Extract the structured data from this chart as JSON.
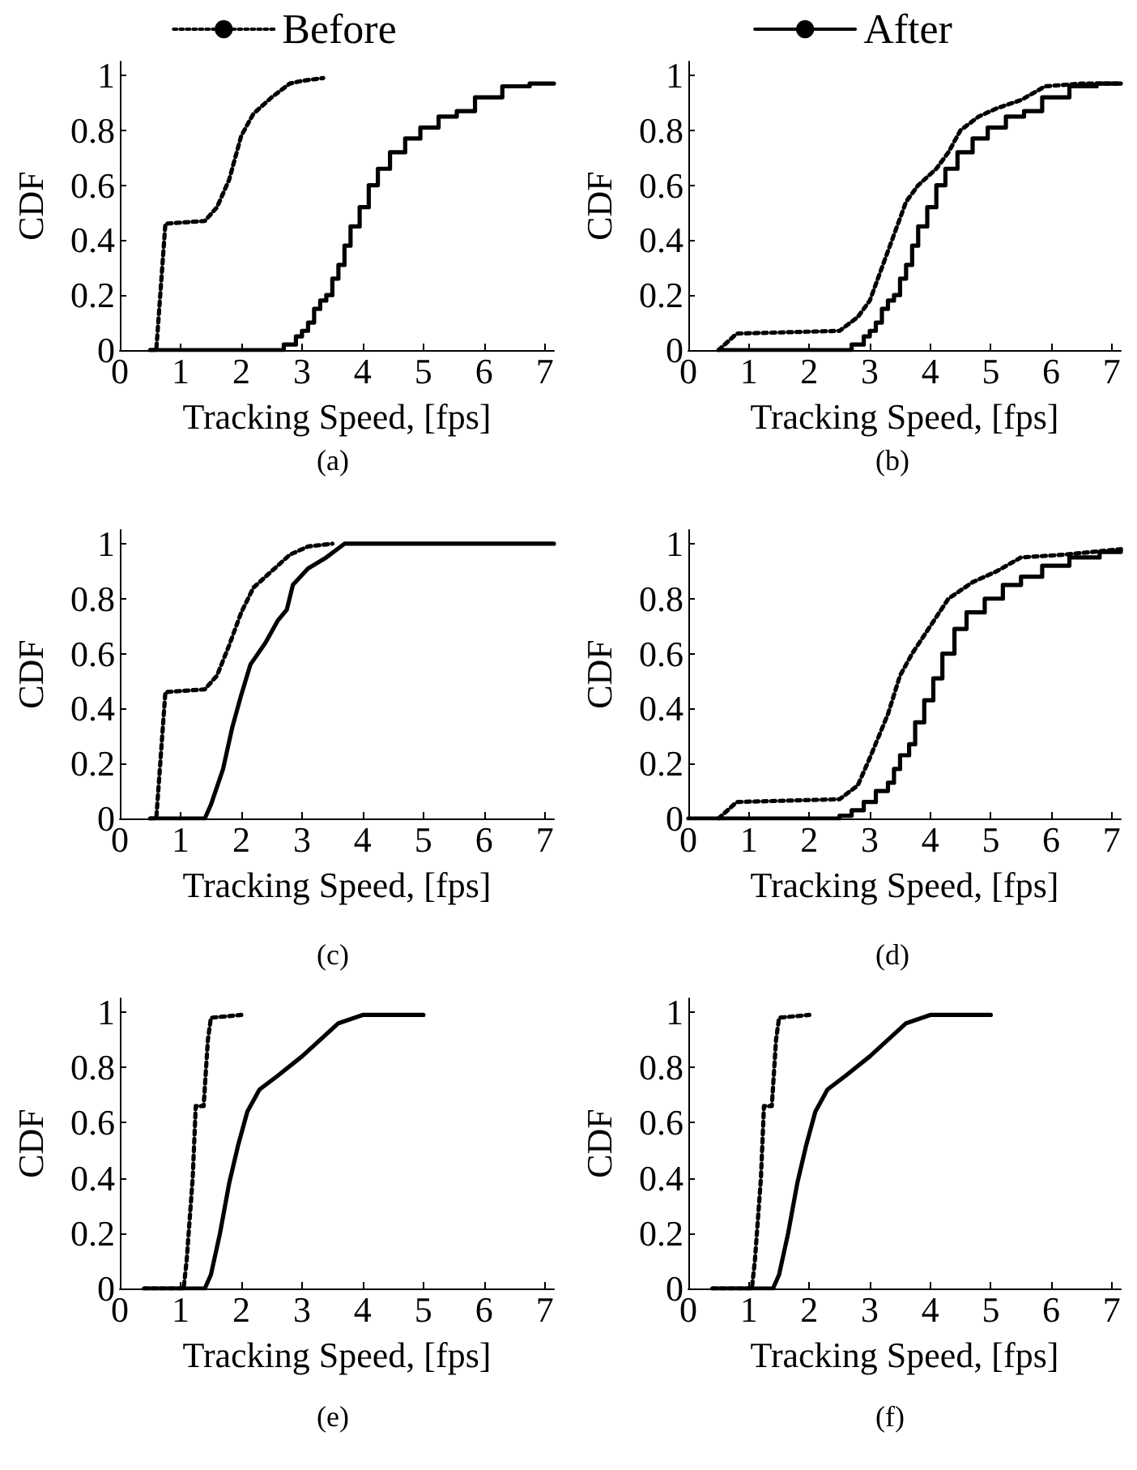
{
  "chart_data": [
    {
      "type": "line",
      "xlabel": "Tracking Speed, [fps]",
      "ylabel": "CDF",
      "annotations": [
        "(a)"
      ],
      "xlim": [
        0,
        7.15
      ],
      "ylim": [
        0,
        1.05
      ],
      "xticks": [
        0,
        1,
        2,
        3,
        4,
        5,
        6,
        7
      ],
      "yticks": [
        0,
        0.2,
        0.4,
        0.6,
        0.8,
        1
      ],
      "grid": false,
      "legend": "top",
      "marker": "none",
      "series": [
        {
          "name": "Before",
          "color": "#000000",
          "line_style": "dotted",
          "x": [
            0.5,
            0.6,
            0.75,
            1.4,
            1.6,
            1.8,
            2.0,
            2.2,
            2.5,
            2.8,
            3.0,
            3.35
          ],
          "values": [
            0,
            0,
            0.46,
            0.47,
            0.52,
            0.62,
            0.78,
            0.86,
            0.92,
            0.97,
            0.98,
            0.99
          ]
        },
        {
          "type": "step",
          "color": "#000000",
          "line_style": "solid",
          "x": [
            0.5,
            2.5,
            2.7,
            2.9,
            3.0,
            3.1,
            3.2,
            3.3,
            3.4,
            3.5,
            3.6,
            3.7,
            3.8,
            3.95,
            4.1,
            4.25,
            4.45,
            4.7,
            4.95,
            5.25,
            5.55,
            5.85,
            6.3,
            6.75,
            7.15
          ],
          "values": [
            0,
            0,
            0.02,
            0.05,
            0.07,
            0.1,
            0.15,
            0.18,
            0.2,
            0.26,
            0.31,
            0.38,
            0.45,
            0.52,
            0.6,
            0.66,
            0.72,
            0.77,
            0.81,
            0.85,
            0.87,
            0.92,
            0.96,
            0.97,
            0.97
          ]
        }
      ]
    },
    {
      "type": "line",
      "xlabel": "Tracking Speed, [fps]",
      "ylabel": "CDF",
      "annotations": [
        "(b)"
      ],
      "xlim": [
        0,
        7.15
      ],
      "ylim": [
        0,
        1.05
      ],
      "xticks": [
        0,
        1,
        2,
        3,
        4,
        5,
        6,
        7
      ],
      "yticks": [
        0,
        0.2,
        0.4,
        0.6,
        0.8,
        1
      ],
      "grid": false,
      "legend": "top",
      "marker": "none",
      "series": [
        {
          "color": "#000000",
          "line_style": "dotted",
          "x": [
            0.5,
            0.8,
            2.5,
            2.8,
            3.0,
            3.2,
            3.4,
            3.6,
            3.8,
            4.1,
            4.3,
            4.5,
            4.8,
            5.1,
            5.5,
            5.9,
            6.5,
            7.15
          ],
          "values": [
            0,
            0.06,
            0.07,
            0.12,
            0.18,
            0.3,
            0.42,
            0.54,
            0.6,
            0.66,
            0.72,
            0.8,
            0.85,
            0.88,
            0.91,
            0.96,
            0.97,
            0.97
          ]
        },
        {
          "name": "After",
          "type": "step",
          "color": "#000000",
          "line_style": "solid",
          "x": [
            0.5,
            2.5,
            2.7,
            2.9,
            3.0,
            3.1,
            3.2,
            3.3,
            3.4,
            3.5,
            3.6,
            3.7,
            3.8,
            3.95,
            4.1,
            4.25,
            4.45,
            4.7,
            4.95,
            5.25,
            5.55,
            5.85,
            6.3,
            6.75,
            7.15
          ],
          "values": [
            0,
            0,
            0.02,
            0.05,
            0.07,
            0.1,
            0.15,
            0.18,
            0.2,
            0.26,
            0.31,
            0.38,
            0.45,
            0.52,
            0.6,
            0.66,
            0.72,
            0.77,
            0.81,
            0.85,
            0.87,
            0.92,
            0.96,
            0.97,
            0.97
          ]
        }
      ]
    },
    {
      "type": "line",
      "xlabel": "Tracking Speed, [fps]",
      "ylabel": "CDF",
      "annotations": [
        "(c)"
      ],
      "xlim": [
        0,
        7.15
      ],
      "ylim": [
        0,
        1.05
      ],
      "xticks": [
        0,
        1,
        2,
        3,
        4,
        5,
        6,
        7
      ],
      "yticks": [
        0,
        0.2,
        0.4,
        0.6,
        0.8,
        1
      ],
      "grid": false,
      "marker": "none",
      "series": [
        {
          "color": "#000000",
          "line_style": "dotted",
          "x": [
            0.5,
            0.6,
            0.75,
            1.4,
            1.6,
            1.8,
            2.0,
            2.2,
            2.5,
            2.8,
            3.1,
            3.5
          ],
          "values": [
            0,
            0,
            0.46,
            0.47,
            0.52,
            0.63,
            0.75,
            0.84,
            0.9,
            0.96,
            0.99,
            1.0
          ]
        },
        {
          "color": "#000000",
          "line_style": "solid",
          "x": [
            0.5,
            1.4,
            1.5,
            1.7,
            1.85,
            2.0,
            2.15,
            2.4,
            2.6,
            2.75,
            2.85,
            3.1,
            3.4,
            3.7,
            7.15
          ],
          "values": [
            0,
            0,
            0.05,
            0.18,
            0.33,
            0.45,
            0.56,
            0.64,
            0.72,
            0.76,
            0.85,
            0.91,
            0.95,
            1.0,
            1.0
          ]
        }
      ]
    },
    {
      "type": "line",
      "xlabel": "Tracking Speed, [fps]",
      "ylabel": "CDF",
      "annotations": [
        "(d)"
      ],
      "xlim": [
        0,
        7.15
      ],
      "ylim": [
        0,
        1.05
      ],
      "xticks": [
        0,
        1,
        2,
        3,
        4,
        5,
        6,
        7
      ],
      "yticks": [
        0,
        0.2,
        0.4,
        0.6,
        0.8,
        1
      ],
      "grid": false,
      "marker": "none",
      "series": [
        {
          "color": "#000000",
          "line_style": "dotted",
          "x": [
            0.5,
            0.8,
            2.5,
            2.8,
            3.0,
            3.3,
            3.5,
            3.7,
            4.0,
            4.3,
            4.7,
            5.1,
            5.5,
            6.2,
            7.15
          ],
          "values": [
            0,
            0.06,
            0.07,
            0.12,
            0.22,
            0.38,
            0.52,
            0.6,
            0.7,
            0.8,
            0.86,
            0.9,
            0.95,
            0.96,
            0.98
          ]
        },
        {
          "type": "step",
          "color": "#000000",
          "line_style": "solid",
          "x": [
            0,
            2.5,
            2.7,
            2.9,
            3.1,
            3.3,
            3.4,
            3.5,
            3.65,
            3.75,
            3.9,
            4.05,
            4.2,
            4.4,
            4.6,
            4.9,
            5.2,
            5.5,
            5.85,
            6.3,
            6.8,
            7.15
          ],
          "values": [
            0,
            0.01,
            0.03,
            0.06,
            0.1,
            0.13,
            0.18,
            0.23,
            0.27,
            0.35,
            0.43,
            0.51,
            0.6,
            0.69,
            0.75,
            0.8,
            0.85,
            0.88,
            0.92,
            0.95,
            0.97,
            0.98
          ]
        }
      ]
    },
    {
      "type": "line",
      "xlabel": "Tracking Speed, [fps]",
      "ylabel": "CDF",
      "annotations": [
        "(e)"
      ],
      "xlim": [
        0,
        7.15
      ],
      "ylim": [
        0,
        1.05
      ],
      "xticks": [
        0,
        1,
        2,
        3,
        4,
        5,
        6,
        7
      ],
      "yticks": [
        0,
        0.2,
        0.4,
        0.6,
        0.8,
        1
      ],
      "grid": false,
      "marker": "none",
      "series": [
        {
          "color": "#000000",
          "line_style": "dotted",
          "x": [
            0.4,
            1.05,
            1.1,
            1.2,
            1.25,
            1.38,
            1.45,
            1.5,
            2.0
          ],
          "values": [
            0,
            0,
            0.1,
            0.4,
            0.66,
            0.66,
            0.9,
            0.98,
            0.99
          ]
        },
        {
          "color": "#000000",
          "line_style": "solid",
          "x": [
            0.4,
            1.4,
            1.5,
            1.65,
            1.8,
            1.95,
            2.1,
            2.3,
            2.6,
            3.0,
            3.3,
            3.6,
            4.0,
            5.0
          ],
          "values": [
            0,
            0,
            0.05,
            0.2,
            0.38,
            0.52,
            0.64,
            0.72,
            0.77,
            0.84,
            0.9,
            0.96,
            0.99,
            0.99
          ]
        }
      ]
    },
    {
      "type": "line",
      "xlabel": "Tracking Speed, [fps]",
      "ylabel": "CDF",
      "annotations": [
        "(f)"
      ],
      "xlim": [
        0,
        7.15
      ],
      "ylim": [
        0,
        1.05
      ],
      "xticks": [
        0,
        1,
        2,
        3,
        4,
        5,
        6,
        7
      ],
      "yticks": [
        0,
        0.2,
        0.4,
        0.6,
        0.8,
        1
      ],
      "grid": false,
      "marker": "none",
      "series": [
        {
          "color": "#000000",
          "line_style": "dotted",
          "x": [
            0.4,
            1.05,
            1.1,
            1.2,
            1.25,
            1.38,
            1.45,
            1.5,
            2.0
          ],
          "values": [
            0,
            0,
            0.1,
            0.4,
            0.66,
            0.66,
            0.9,
            0.98,
            0.99
          ]
        },
        {
          "color": "#000000",
          "line_style": "solid",
          "x": [
            0.4,
            1.4,
            1.5,
            1.65,
            1.8,
            1.95,
            2.1,
            2.3,
            2.6,
            3.0,
            3.3,
            3.6,
            4.0,
            5.0
          ],
          "values": [
            0,
            0,
            0.05,
            0.2,
            0.38,
            0.52,
            0.64,
            0.72,
            0.77,
            0.84,
            0.9,
            0.96,
            0.99,
            0.99
          ]
        }
      ]
    }
  ]
}
